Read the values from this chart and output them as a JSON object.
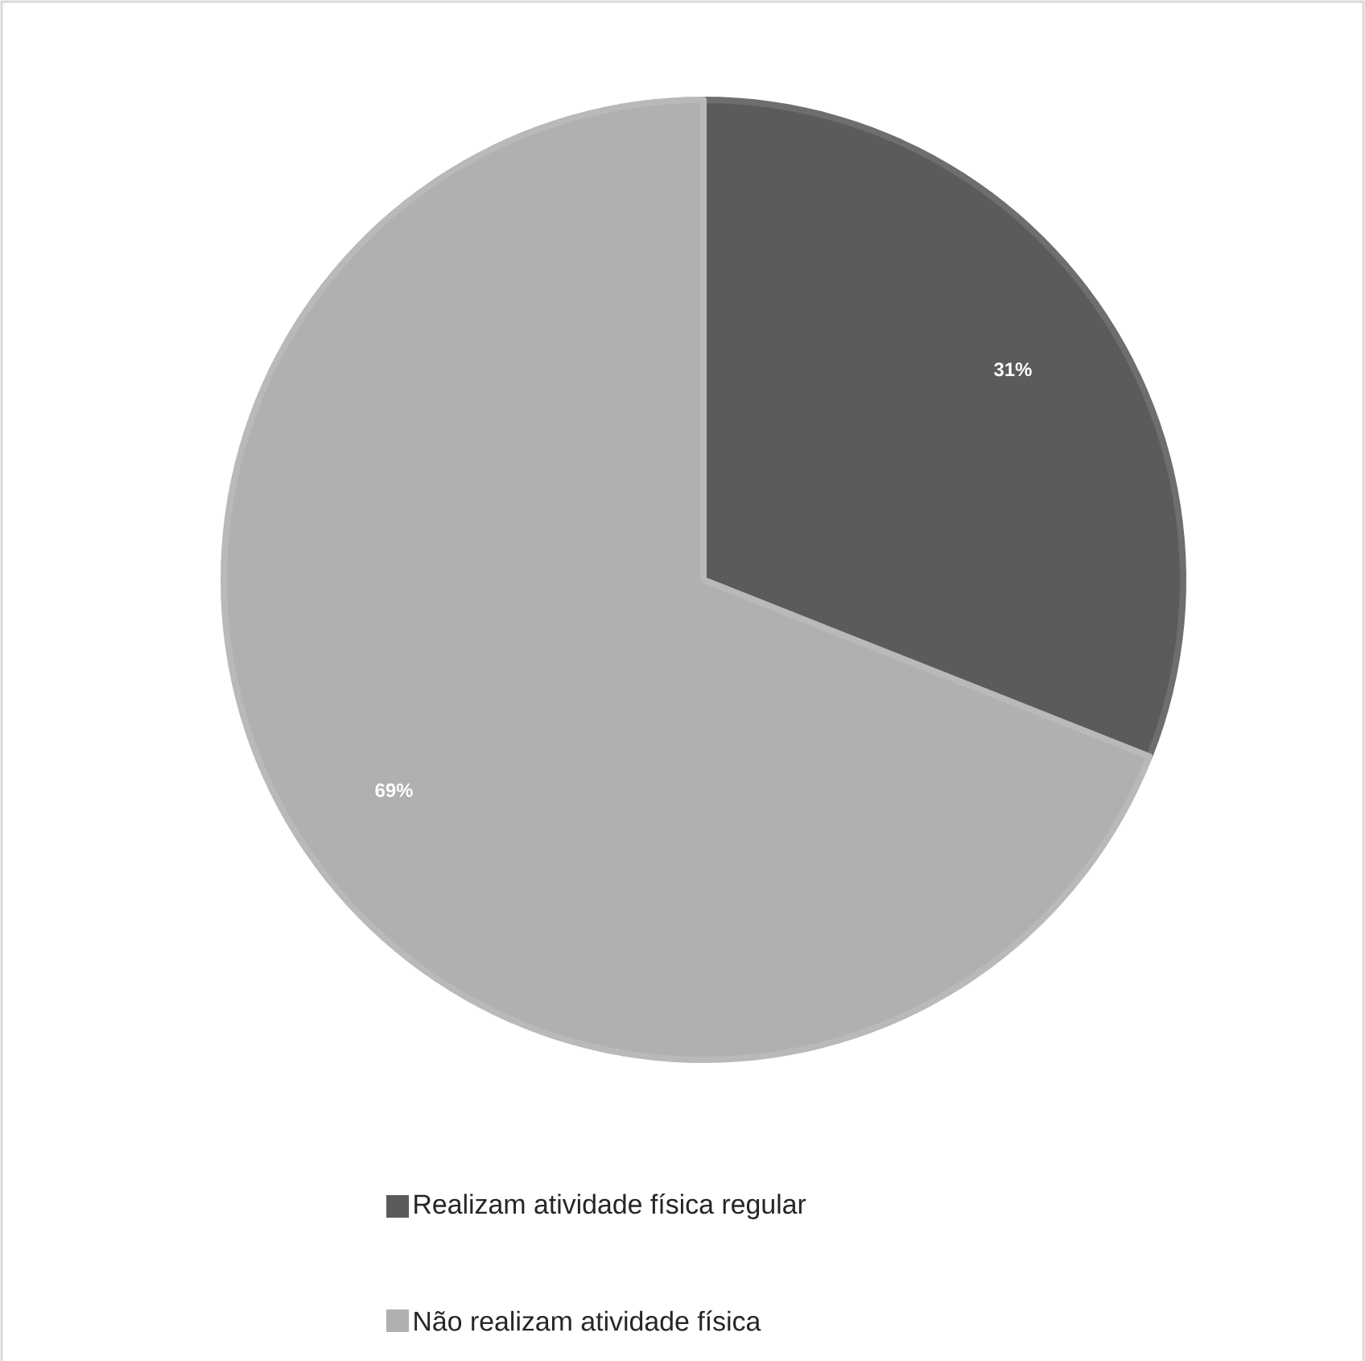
{
  "chart_data": {
    "type": "pie",
    "categories": [
      "Realizam atividade física regular",
      "Não realizam atividade física"
    ],
    "values": [
      31,
      69
    ],
    "colors": [
      "#5b5b5b",
      "#b0b0b0"
    ],
    "value_labels": [
      "31%",
      "69%"
    ],
    "legend": "bottom"
  }
}
